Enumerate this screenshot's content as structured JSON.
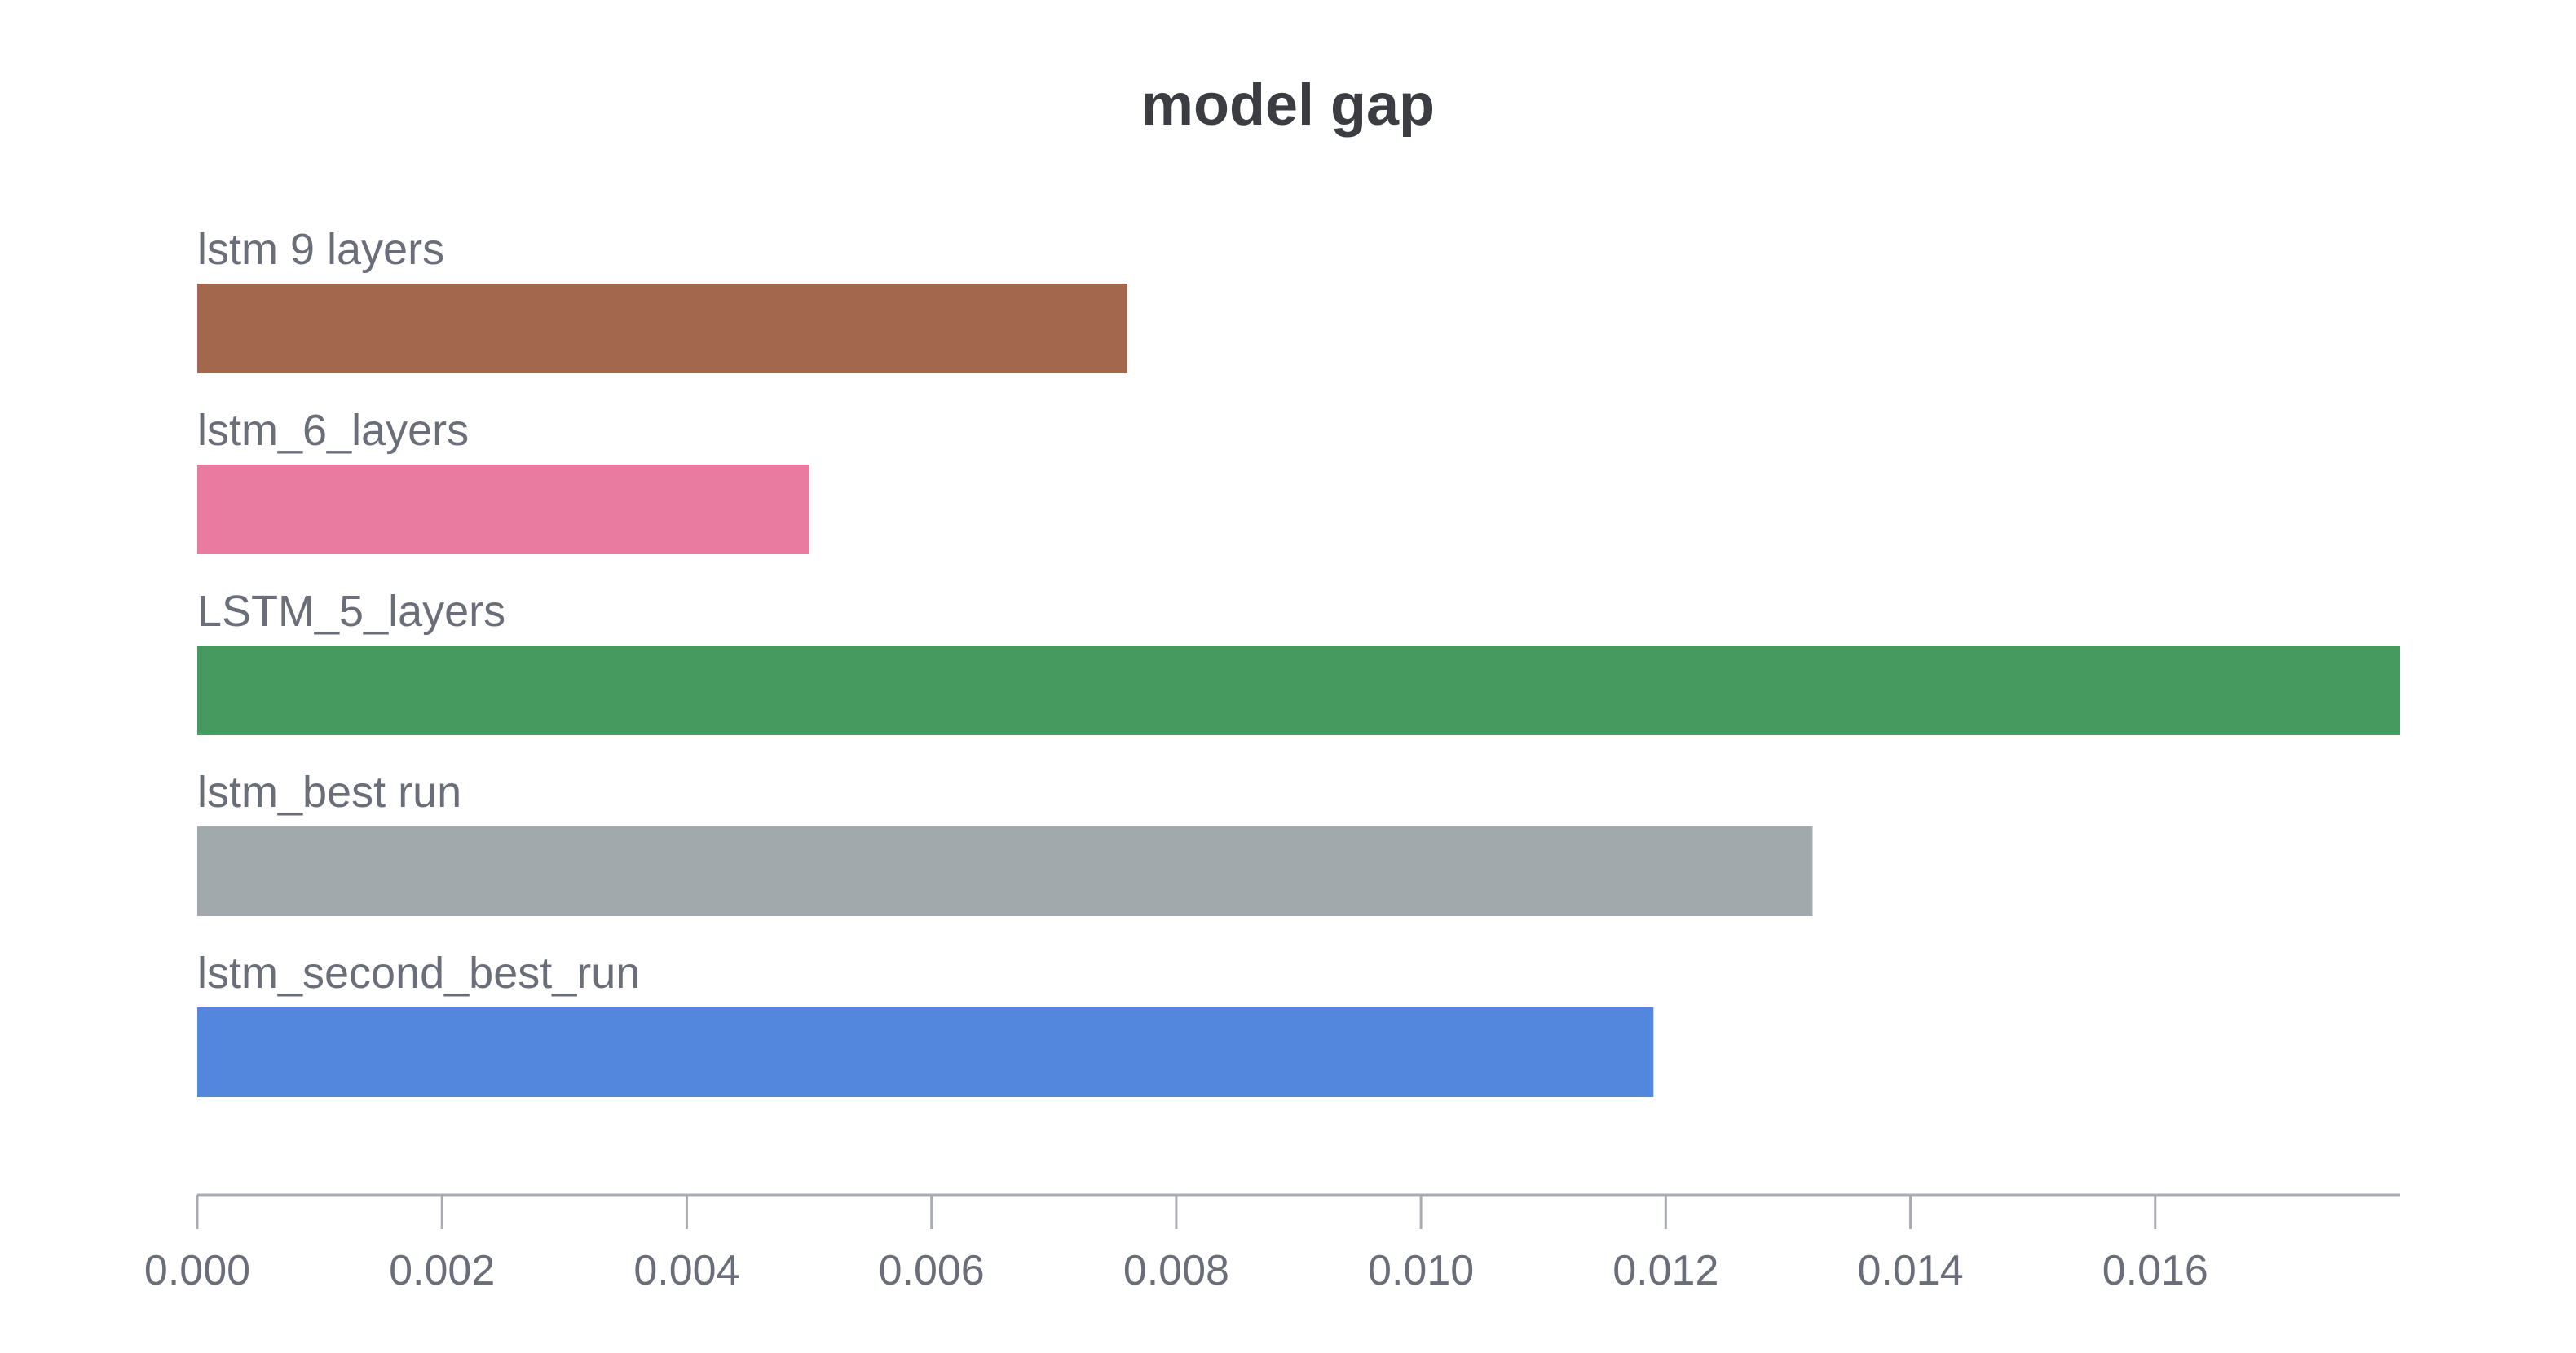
{
  "chart_data": {
    "type": "bar",
    "orientation": "horizontal",
    "title": "model gap",
    "xlabel": "",
    "ylabel": "",
    "xlim": [
      0,
      0.018
    ],
    "xticks": [
      "0.000",
      "0.002",
      "0.004",
      "0.006",
      "0.008",
      "0.010",
      "0.012",
      "0.014",
      "0.016"
    ],
    "grid": false,
    "categories": [
      "lstm 9 layers",
      "lstm_6_layers",
      "LSTM_5_layers",
      "lstm_best run",
      "lstm_second_best_run"
    ],
    "values": [
      0.0076,
      0.005,
      0.018,
      0.0132,
      0.0119
    ],
    "colors": [
      "#a2674d",
      "#e97aa0",
      "#479a5f",
      "#a1a9ad",
      "#5387dd"
    ]
  }
}
